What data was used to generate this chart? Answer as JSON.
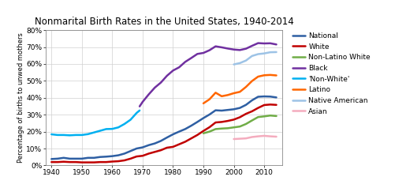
{
  "title": "Nonmarital Birth Rates in the United States, 1940-2014",
  "ylabel": "Percentage of births to unwed mothers",
  "ylim": [
    0,
    80
  ],
  "yticks": [
    0,
    10,
    20,
    30,
    40,
    50,
    60,
    70,
    80
  ],
  "xlim": [
    1938,
    2016
  ],
  "xticks": [
    1940,
    1950,
    1960,
    1970,
    1980,
    1990,
    2000,
    2010
  ],
  "series": {
    "National": {
      "color": "#2E5FA3",
      "data": {
        "1940": 3.8,
        "1942": 4.0,
        "1944": 4.5,
        "1946": 4.0,
        "1948": 4.0,
        "1950": 4.0,
        "1952": 4.5,
        "1954": 4.5,
        "1956": 5.0,
        "1958": 5.2,
        "1960": 5.5,
        "1962": 6.0,
        "1964": 7.0,
        "1966": 8.5,
        "1968": 10.0,
        "1970": 10.7,
        "1972": 12.0,
        "1974": 13.0,
        "1976": 14.5,
        "1978": 16.5,
        "1980": 18.4,
        "1982": 20.0,
        "1984": 21.5,
        "1986": 23.5,
        "1988": 25.7,
        "1990": 28.0,
        "1992": 30.1,
        "1994": 32.6,
        "1996": 32.4,
        "1998": 32.8,
        "2000": 33.2,
        "2002": 34.0,
        "2004": 35.8,
        "2006": 38.5,
        "2008": 40.6,
        "2010": 40.8,
        "2012": 40.7,
        "2014": 40.2
      }
    },
    "White": {
      "color": "#C00000",
      "data": {
        "1940": 2.0,
        "1942": 2.0,
        "1944": 2.2,
        "1946": 2.0,
        "1948": 2.0,
        "1950": 1.8,
        "1952": 1.8,
        "1954": 1.8,
        "1956": 2.0,
        "1958": 2.0,
        "1960": 2.3,
        "1962": 2.5,
        "1964": 3.0,
        "1966": 4.0,
        "1968": 5.3,
        "1970": 5.7,
        "1972": 7.0,
        "1974": 8.0,
        "1976": 9.0,
        "1978": 10.5,
        "1980": 11.0,
        "1982": 12.5,
        "1984": 14.0,
        "1986": 16.0,
        "1988": 18.0,
        "1990": 20.4,
        "1992": 22.6,
        "1994": 25.4,
        "1996": 25.7,
        "1998": 26.3,
        "2000": 27.1,
        "2002": 28.5,
        "2004": 30.5,
        "2006": 32.0,
        "2008": 34.0,
        "2010": 35.7,
        "2012": 36.0,
        "2014": 35.8
      }
    },
    "Non-Latino White": {
      "color": "#70AD47",
      "data": {
        "1990": 19.0,
        "1992": 20.0,
        "1994": 21.5,
        "1996": 21.8,
        "1998": 22.0,
        "2000": 22.5,
        "2002": 23.0,
        "2004": 24.5,
        "2006": 26.6,
        "2008": 28.6,
        "2010": 29.0,
        "2012": 29.5,
        "2014": 29.2
      }
    },
    "Black": {
      "color": "#7030A0",
      "data": {
        "1969": 34.9,
        "1970": 37.6,
        "1972": 42.0,
        "1974": 46.0,
        "1976": 49.0,
        "1978": 53.0,
        "1980": 56.1,
        "1982": 58.0,
        "1984": 61.2,
        "1986": 63.5,
        "1988": 65.9,
        "1990": 66.5,
        "1992": 68.1,
        "1994": 70.4,
        "1996": 69.8,
        "1998": 69.1,
        "2000": 68.5,
        "2002": 68.2,
        "2004": 69.0,
        "2006": 70.7,
        "2008": 72.3,
        "2010": 72.1,
        "2012": 72.2,
        "2014": 71.5
      }
    },
    "'Non-White'": {
      "color": "#00B0F0",
      "data": {
        "1940": 18.4,
        "1942": 18.0,
        "1944": 18.0,
        "1946": 17.8,
        "1948": 18.0,
        "1950": 18.0,
        "1952": 18.5,
        "1954": 19.5,
        "1956": 20.5,
        "1958": 21.5,
        "1960": 21.6,
        "1962": 22.5,
        "1964": 24.5,
        "1966": 27.0,
        "1968": 31.0,
        "1969": 32.5
      }
    },
    "Latino": {
      "color": "#FF6600",
      "data": {
        "1990": 36.7,
        "1992": 39.1,
        "1994": 43.0,
        "1996": 40.9,
        "1998": 41.6,
        "2000": 42.7,
        "2002": 43.5,
        "2004": 46.4,
        "2006": 49.9,
        "2008": 52.5,
        "2010": 53.3,
        "2012": 53.5,
        "2014": 53.2
      }
    },
    "Native American": {
      "color": "#9DC3E6",
      "data": {
        "2000": 59.7,
        "2002": 60.5,
        "2004": 62.0,
        "2006": 64.7,
        "2008": 65.8,
        "2010": 66.2,
        "2012": 66.9,
        "2014": 67.0
      }
    },
    "Asian": {
      "color": "#F4ACBE",
      "data": {
        "2000": 15.6,
        "2002": 15.8,
        "2004": 16.0,
        "2006": 16.8,
        "2008": 17.2,
        "2010": 17.5,
        "2012": 17.2,
        "2014": 17.0
      }
    }
  },
  "legend_order": [
    "National",
    "White",
    "Non-Latino White",
    "Black",
    "'Non-White'",
    "Latino",
    "Native American",
    "Asian"
  ],
  "background_color": "#FFFFFF",
  "grid_color": "#D0D0D0",
  "title_fontsize": 8.5,
  "label_fontsize": 6.0,
  "tick_fontsize": 6.5,
  "legend_fontsize": 6.5,
  "linewidth": 1.8
}
